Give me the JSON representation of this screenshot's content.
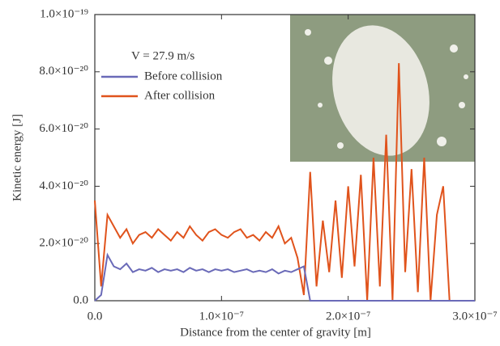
{
  "chart_data": {
    "type": "line",
    "xlabel": "Distance from the center of gravity [m]",
    "ylabel": "Kinetic energy [J]",
    "annotation": "V = 27.9 m/s",
    "x": [
      0,
      5e-09,
      1e-08,
      1.5e-08,
      2e-08,
      2.5e-08,
      3e-08,
      3.5e-08,
      4e-08,
      4.5e-08,
      5e-08,
      5.5e-08,
      6e-08,
      6.5e-08,
      7e-08,
      7.5e-08,
      8e-08,
      8.5e-08,
      9e-08,
      9.5e-08,
      1e-07,
      1.05e-07,
      1.1e-07,
      1.15e-07,
      1.2e-07,
      1.25e-07,
      1.3e-07,
      1.35e-07,
      1.4e-07,
      1.45e-07,
      1.5e-07,
      1.55e-07,
      1.6e-07,
      1.65e-07,
      1.7e-07,
      1.75e-07,
      1.8e-07,
      1.85e-07,
      1.9e-07,
      1.95e-07,
      2e-07,
      2.05e-07,
      2.1e-07,
      2.15e-07,
      2.2e-07,
      2.25e-07,
      2.3e-07,
      2.35e-07,
      2.4e-07,
      2.45e-07,
      2.5e-07,
      2.55e-07,
      2.6e-07,
      2.65e-07,
      2.7e-07,
      2.75e-07,
      2.8e-07,
      2.85e-07,
      2.9e-07,
      2.95e-07,
      3e-07
    ],
    "series": [
      {
        "name": "Before collision",
        "color": "#6a6ab8",
        "values": [
          0,
          2e-21,
          1.6e-20,
          1.2e-20,
          1.1e-20,
          1.3e-20,
          1e-20,
          1.1e-20,
          1.05e-20,
          1.15e-20,
          1e-20,
          1.1e-20,
          1.05e-20,
          1.1e-20,
          1e-20,
          1.15e-20,
          1.05e-20,
          1.1e-20,
          1e-20,
          1.1e-20,
          1.05e-20,
          1.1e-20,
          1e-20,
          1.05e-20,
          1.1e-20,
          1e-20,
          1.05e-20,
          1e-20,
          1.1e-20,
          9.5e-21,
          1.05e-20,
          1e-20,
          1.1e-20,
          1.2e-20,
          0,
          0,
          0,
          0,
          0,
          0,
          0,
          0,
          0,
          0,
          0,
          0,
          0,
          0,
          0,
          0,
          0,
          0,
          0,
          0,
          0,
          0,
          0,
          0,
          0,
          0,
          0
        ]
      },
      {
        "name": "After collision",
        "color": "#e0531c",
        "values": [
          3.5e-20,
          5e-21,
          3e-20,
          2.6e-20,
          2.2e-20,
          2.5e-20,
          2e-20,
          2.3e-20,
          2.4e-20,
          2.2e-20,
          2.5e-20,
          2.3e-20,
          2.1e-20,
          2.4e-20,
          2.2e-20,
          2.6e-20,
          2.3e-20,
          2.1e-20,
          2.4e-20,
          2.5e-20,
          2.3e-20,
          2.2e-20,
          2.4e-20,
          2.5e-20,
          2.2e-20,
          2.3e-20,
          2.1e-20,
          2.4e-20,
          2.2e-20,
          2.6e-20,
          2e-20,
          2.2e-20,
          1.5e-20,
          2e-21,
          4.5e-20,
          5e-21,
          2.8e-20,
          1e-20,
          3.5e-20,
          8e-21,
          4e-20,
          1.2e-20,
          4.4e-20,
          0,
          5e-20,
          5e-21,
          5.8e-20,
          0,
          8.3e-20,
          1e-20,
          4.6e-20,
          3e-21,
          5e-20,
          0,
          3e-20,
          4e-20,
          0,
          0,
          0,
          0,
          0
        ]
      }
    ],
    "xlim": [
      0,
      3e-07
    ],
    "xticks": [
      {
        "value": 0,
        "label": "0.0"
      },
      {
        "value": 1e-07,
        "label": "1.0×10⁻⁷"
      },
      {
        "value": 2e-07,
        "label": "2.0×10⁻⁷"
      },
      {
        "value": 3e-07,
        "label": "3.0×10⁻⁷"
      }
    ],
    "ylim": [
      0,
      1e-19
    ],
    "yticks": [
      {
        "value": 0,
        "label": "0.0"
      },
      {
        "value": 2e-20,
        "label": "2.0×10⁻²⁰"
      },
      {
        "value": 4e-20,
        "label": "4.0×10⁻²⁰"
      },
      {
        "value": 6e-20,
        "label": "6.0×10⁻²⁰"
      },
      {
        "value": 8e-20,
        "label": "8.0×10⁻²⁰"
      },
      {
        "value": 1e-19,
        "label": "1.0×10⁻¹⁹"
      }
    ],
    "grid": false
  }
}
